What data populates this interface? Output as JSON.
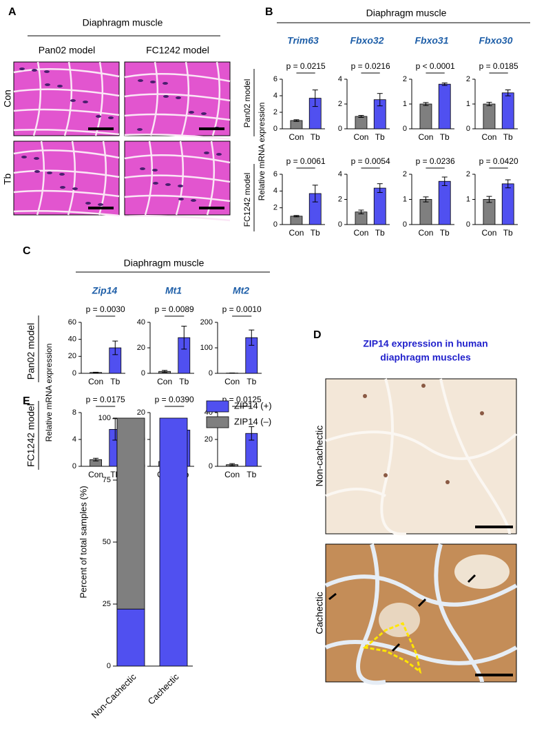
{
  "panel_a": {
    "label": "A",
    "heading": "Diaphragm muscle",
    "columns": [
      "Pan02 model",
      "FC1242 model"
    ],
    "rows": [
      "Con",
      "Tb"
    ]
  },
  "panel_b": {
    "label": "B",
    "heading": "Diaphragm muscle",
    "genes": [
      "Trim63",
      "Fbxo32",
      "Fbxo31",
      "Fbxo30"
    ],
    "rows": [
      "Pan02 model",
      "FC1242 model"
    ],
    "ylabel": "Relative mRNA expression"
  },
  "panel_c": {
    "label": "C",
    "heading": "Diaphragm muscle",
    "genes": [
      "Zip14",
      "Mt1",
      "Mt2"
    ],
    "rows": [
      "Pan02 model",
      "FC1242 model"
    ],
    "ylabel": "Relative mRNA expression"
  },
  "panel_d": {
    "label": "D",
    "title": [
      "ZIP14 expression in human",
      "diaphragm muscles"
    ],
    "rows": [
      "Non-cachectic",
      "Cachectic"
    ]
  },
  "panel_e": {
    "label": "E"
  },
  "chart_data": [
    {
      "type": "bar",
      "categories": [
        "Con",
        "Tb"
      ],
      "values": [
        1.0,
        3.7
      ],
      "errors": [
        0.1,
        1.0
      ],
      "colors": [
        "#7f7f7f",
        "#5050f0"
      ],
      "ylim": [
        0,
        6
      ],
      "yticks": [
        0,
        2,
        4,
        6
      ],
      "annotation": "p = 0.0215"
    },
    {
      "type": "bar",
      "categories": [
        "Con",
        "Tb"
      ],
      "values": [
        1.0,
        2.35
      ],
      "errors": [
        0.08,
        0.5
      ],
      "colors": [
        "#7f7f7f",
        "#5050f0"
      ],
      "ylim": [
        0,
        4
      ],
      "yticks": [
        0,
        2,
        4
      ],
      "annotation": "p = 0.0216"
    },
    {
      "type": "bar",
      "categories": [
        "Con",
        "Tb"
      ],
      "values": [
        1.0,
        1.8
      ],
      "errors": [
        0.06,
        0.05
      ],
      "colors": [
        "#7f7f7f",
        "#5050f0"
      ],
      "ylim": [
        0,
        2
      ],
      "yticks": [
        0,
        1,
        2
      ],
      "annotation": "p < 0.0001"
    },
    {
      "type": "bar",
      "categories": [
        "Con",
        "Tb"
      ],
      "values": [
        1.0,
        1.45
      ],
      "errors": [
        0.07,
        0.12
      ],
      "colors": [
        "#7f7f7f",
        "#5050f0"
      ],
      "ylim": [
        0,
        2
      ],
      "yticks": [
        0,
        1,
        2
      ],
      "annotation": "p = 0.0185"
    },
    {
      "type": "bar",
      "categories": [
        "Con",
        "Tb"
      ],
      "values": [
        1.0,
        3.7
      ],
      "errors": [
        0.08,
        1.0
      ],
      "colors": [
        "#7f7f7f",
        "#5050f0"
      ],
      "ylim": [
        0,
        6
      ],
      "yticks": [
        0,
        2,
        4,
        6
      ],
      "annotation": "p = 0.0061"
    },
    {
      "type": "bar",
      "categories": [
        "Con",
        "Tb"
      ],
      "values": [
        1.0,
        2.9
      ],
      "errors": [
        0.15,
        0.35
      ],
      "colors": [
        "#7f7f7f",
        "#5050f0"
      ],
      "ylim": [
        0,
        4
      ],
      "yticks": [
        0,
        2,
        4
      ],
      "annotation": "p = 0.0054"
    },
    {
      "type": "bar",
      "categories": [
        "Con",
        "Tb"
      ],
      "values": [
        1.0,
        1.72
      ],
      "errors": [
        0.1,
        0.17
      ],
      "colors": [
        "#7f7f7f",
        "#5050f0"
      ],
      "ylim": [
        0,
        2
      ],
      "yticks": [
        0,
        1,
        2
      ],
      "annotation": "p = 0.0236"
    },
    {
      "type": "bar",
      "categories": [
        "Con",
        "Tb"
      ],
      "values": [
        1.0,
        1.62
      ],
      "errors": [
        0.12,
        0.16
      ],
      "colors": [
        "#7f7f7f",
        "#5050f0"
      ],
      "ylim": [
        0,
        2
      ],
      "yticks": [
        0,
        1,
        2
      ],
      "annotation": "p = 0.0420"
    },
    {
      "type": "bar",
      "categories": [
        "Con",
        "Tb"
      ],
      "values": [
        1,
        30
      ],
      "errors": [
        0.3,
        8
      ],
      "colors": [
        "#7f7f7f",
        "#5050f0"
      ],
      "ylim": [
        0,
        60
      ],
      "yticks": [
        0,
        20,
        40,
        60
      ],
      "annotation": "p = 0.0030"
    },
    {
      "type": "bar",
      "categories": [
        "Con",
        "Tb"
      ],
      "values": [
        1.5,
        28
      ],
      "errors": [
        0.8,
        9
      ],
      "colors": [
        "#7f7f7f",
        "#5050f0"
      ],
      "ylim": [
        0,
        40
      ],
      "yticks": [
        0,
        20,
        40
      ],
      "annotation": "p = 0.0089"
    },
    {
      "type": "bar",
      "categories": [
        "Con",
        "Tb"
      ],
      "values": [
        1,
        140
      ],
      "errors": [
        0.5,
        30
      ],
      "colors": [
        "#7f7f7f",
        "#5050f0"
      ],
      "ylim": [
        0,
        200
      ],
      "yticks": [
        0,
        100,
        200
      ],
      "annotation": "p = 0.0010"
    },
    {
      "type": "bar",
      "categories": [
        "Con",
        "Tb"
      ],
      "values": [
        1.0,
        5.5
      ],
      "errors": [
        0.2,
        1.6
      ],
      "colors": [
        "#7f7f7f",
        "#5050f0"
      ],
      "ylim": [
        0,
        8
      ],
      "yticks": [
        0,
        4,
        8
      ],
      "annotation": "p = 0.0175"
    },
    {
      "type": "bar",
      "categories": [
        "Con",
        "Tb"
      ],
      "values": [
        1.8,
        13.5
      ],
      "errors": [
        1.2,
        3.5
      ],
      "colors": [
        "#7f7f7f",
        "#5050f0"
      ],
      "ylim": [
        0,
        20
      ],
      "yticks": [
        0,
        10,
        20
      ],
      "annotation": "p = 0.0390"
    },
    {
      "type": "bar",
      "categories": [
        "Con",
        "Tb"
      ],
      "values": [
        1.2,
        24.5
      ],
      "errors": [
        0.8,
        5
      ],
      "colors": [
        "#7f7f7f",
        "#5050f0"
      ],
      "ylim": [
        0,
        40
      ],
      "yticks": [
        0,
        20,
        40
      ],
      "annotation": "p = 0.0125"
    },
    {
      "type": "stacked_bar",
      "categories": [
        "Non-Cachectic",
        "Cachectic"
      ],
      "series": [
        {
          "name": "ZIP14 (+)",
          "color": "#5050f0",
          "values": [
            23,
            100
          ]
        },
        {
          "name": "ZIP14 (–)",
          "color": "#7f7f7f",
          "values": [
            77,
            0
          ]
        }
      ],
      "ylim": [
        0,
        100
      ],
      "yticks": [
        0,
        25,
        50,
        75,
        100
      ],
      "ylabel": "Percent of total samples (%)"
    }
  ]
}
